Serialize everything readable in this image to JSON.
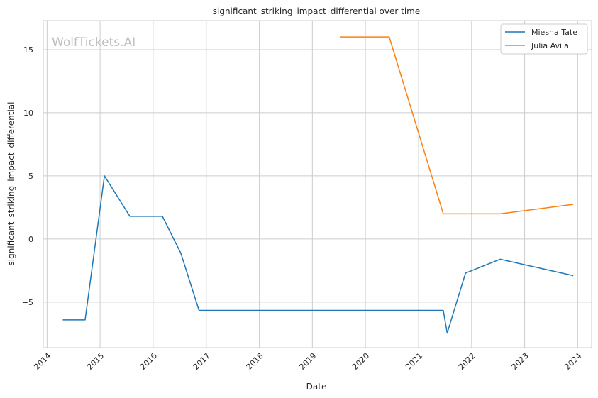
{
  "chart_data": {
    "type": "line",
    "title": "significant_striking_impact_differential over time",
    "xlabel": "Date",
    "ylabel": "significant_striking_impact_differential",
    "watermark": "WolfTickets.AI",
    "x_ticks": [
      "2014",
      "2015",
      "2016",
      "2017",
      "2018",
      "2019",
      "2020",
      "2021",
      "2022",
      "2023",
      "2024"
    ],
    "y_ticks": [
      -5,
      0,
      5,
      10,
      15
    ],
    "xlim": [
      "2013-12-06",
      "2024-04-06"
    ],
    "ylim": [
      -8.6,
      17.3
    ],
    "grid": true,
    "legend_position": "top-right",
    "series": [
      {
        "name": "Miesha Tate",
        "color": "#1f77b4",
        "points": [
          {
            "x": "2014-04-19",
            "y": -6.4
          },
          {
            "x": "2014-09-20",
            "y": -6.4
          },
          {
            "x": "2015-01-31",
            "y": 5.0
          },
          {
            "x": "2015-07-25",
            "y": 1.8
          },
          {
            "x": "2016-03-05",
            "y": 1.8
          },
          {
            "x": "2016-07-09",
            "y": -1.1
          },
          {
            "x": "2016-11-12",
            "y": -5.65
          },
          {
            "x": "2021-06-20",
            "y": -5.65
          },
          {
            "x": "2021-07-17",
            "y": -7.45
          },
          {
            "x": "2021-11-20",
            "y": -2.7
          },
          {
            "x": "2022-07-16",
            "y": -1.6
          },
          {
            "x": "2023-12-02",
            "y": -2.9
          }
        ]
      },
      {
        "name": "Julia Avila",
        "color": "#ff7f0e",
        "points": [
          {
            "x": "2019-07-13",
            "y": 16.0
          },
          {
            "x": "2020-06-13",
            "y": 16.0
          },
          {
            "x": "2021-06-20",
            "y": 2.0
          },
          {
            "x": "2022-07-16",
            "y": 2.0
          },
          {
            "x": "2023-12-02",
            "y": 2.75
          }
        ]
      }
    ]
  }
}
